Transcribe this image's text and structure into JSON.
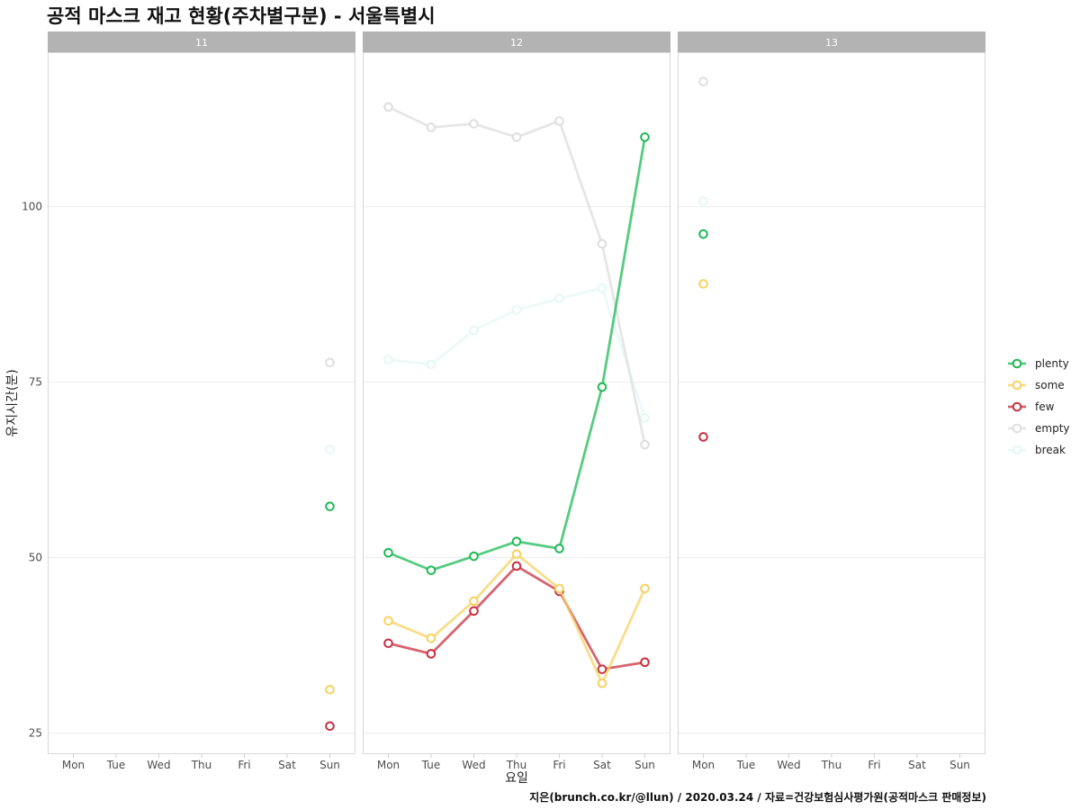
{
  "title": "공적 마스크 재고 현황(주차별구분) - 서울특별시",
  "caption": "지은(brunch.co.kr/@llun) / 2020.03.24 / 자료=건강보험심사평가원(공적마스크 판매정보)",
  "chart_data": {
    "type": "line",
    "facet_variable": "week",
    "panels": [
      "11",
      "12",
      "13"
    ],
    "xlabel": "요일",
    "ylabel": "유지시간(분)",
    "categories": [
      "Mon",
      "Tue",
      "Wed",
      "Thu",
      "Fri",
      "Sat",
      "Sun"
    ],
    "y_ticks": [
      25,
      50,
      75,
      100
    ],
    "ylim": [
      22,
      122
    ],
    "grid": true,
    "legend_position": "right",
    "series": [
      {
        "name": "plenty",
        "color": "#1db954",
        "values": {
          "11": [
            null,
            null,
            null,
            null,
            null,
            null,
            57.3
          ],
          "12": [
            50.7,
            48.2,
            50.2,
            52.3,
            51.3,
            74.3,
            109.9
          ],
          "13": [
            96.1,
            null,
            null,
            null,
            null,
            null,
            null
          ]
        }
      },
      {
        "name": "some",
        "color": "#f7d160",
        "values": {
          "11": [
            null,
            null,
            null,
            null,
            null,
            null,
            31.2
          ],
          "12": [
            41.0,
            38.5,
            43.8,
            50.5,
            45.6,
            32.1,
            45.6
          ],
          "13": [
            89.0,
            null,
            null,
            null,
            null,
            null,
            null
          ]
        }
      },
      {
        "name": "few",
        "color": "#c8303f",
        "values": {
          "11": [
            null,
            null,
            null,
            null,
            null,
            null,
            26.0
          ],
          "12": [
            37.8,
            36.3,
            42.4,
            48.8,
            45.2,
            34.1,
            35.1
          ],
          "13": [
            67.2,
            null,
            null,
            null,
            null,
            null,
            null
          ]
        }
      },
      {
        "name": "empty",
        "color": "#dedede",
        "values": {
          "11": [
            null,
            null,
            null,
            null,
            null,
            null,
            77.8
          ],
          "12": [
            114.2,
            111.3,
            111.8,
            109.9,
            112.2,
            94.7,
            66.1
          ],
          "13": [
            117.8,
            null,
            null,
            null,
            null,
            null,
            null
          ]
        }
      },
      {
        "name": "break",
        "color": "#e4f7f5",
        "values": {
          "11": [
            null,
            null,
            null,
            null,
            null,
            null,
            65.4
          ],
          "12": [
            78.2,
            77.5,
            82.4,
            85.3,
            86.9,
            88.4,
            69.9
          ],
          "13": [
            100.8,
            null,
            null,
            null,
            null,
            null,
            null
          ]
        }
      }
    ]
  }
}
